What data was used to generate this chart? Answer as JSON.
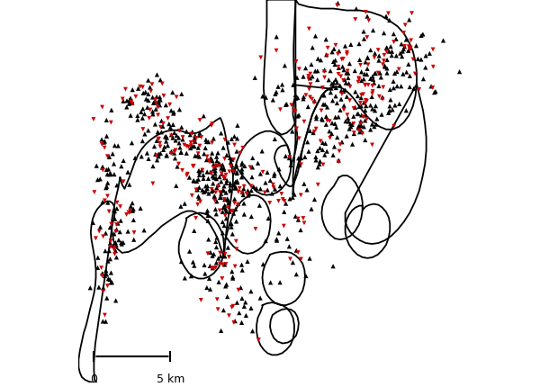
{
  "background_color": "#ffffff",
  "sensitive_color": "#000000",
  "resistant_color": "#cc0000",
  "marker_size_sens": 14,
  "marker_size_res": 12,
  "line_color": "#000000",
  "line_width": 1.3,
  "figsize": [
    6.0,
    4.31
  ],
  "dpi": 100,
  "scalebar": {
    "label0": "0",
    "label1": "5 km",
    "fontsize": 9
  }
}
